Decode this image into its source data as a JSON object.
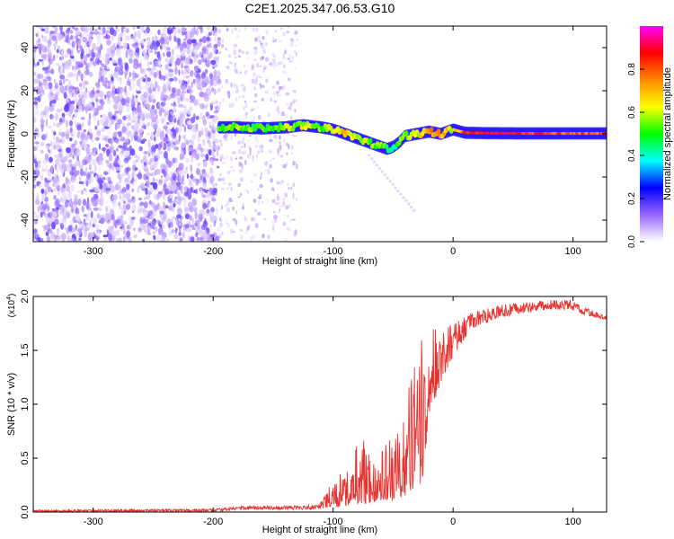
{
  "page": {
    "title": "C2E1.2025.347.06.53.G10"
  },
  "chart_data": [
    {
      "type": "heatmap",
      "title": "C2E1.2025.347.06.53.G10",
      "xlabel": "Height of straight line (km)",
      "ylabel": "Frequency (Hz)",
      "xlim": [
        -350,
        128
      ],
      "ylim": [
        -50,
        50
      ],
      "x_ticks": [
        -300,
        -200,
        -100,
        0,
        100
      ],
      "y_ticks": [
        -40,
        -20,
        0,
        20,
        40
      ],
      "colorbar": {
        "label": "Normalized spectral amplitude",
        "range": [
          0,
          1
        ],
        "ticks": [
          "0.0",
          "0.2",
          "0.4",
          "0.6",
          "0.8"
        ],
        "colors": [
          "#ffffff",
          "#9966ff",
          "#0000ff",
          "#00ffff",
          "#00ff00",
          "#ffff00",
          "#ff8800",
          "#ff0000",
          "#ff00ff"
        ]
      },
      "noise_region_x": [
        -350,
        -195
      ],
      "sparse_region_x": [
        -195,
        -130
      ],
      "signal_track": {
        "x": [
          -195,
          -180,
          -160,
          -140,
          -125,
          -110,
          -100,
          -90,
          -80,
          -70,
          -60,
          -55,
          -50,
          -45,
          -40,
          -30,
          -20,
          -10,
          0,
          10,
          30,
          60,
          90,
          128
        ],
        "frequency": [
          3,
          3,
          2.5,
          3,
          4,
          3,
          2,
          0,
          -2,
          -4,
          -6,
          -7,
          -6,
          -4,
          -1,
          0,
          1,
          0,
          2,
          0.5,
          0.3,
          0.2,
          0.2,
          0.2
        ],
        "amplitude": [
          0.5,
          0.55,
          0.5,
          0.55,
          0.6,
          0.55,
          0.6,
          0.65,
          0.6,
          0.55,
          0.55,
          0.5,
          0.45,
          0.5,
          0.55,
          0.6,
          0.75,
          0.7,
          0.6,
          0.85,
          0.9,
          0.85,
          0.8,
          0.8
        ]
      }
    },
    {
      "type": "line",
      "xlabel": "Height of straight line (km)",
      "ylabel": "SNR (10 * v/v)",
      "multiplier_label": "(x10",
      "multiplier_exponent": "4",
      "multiplier_close": ")",
      "xlim": [
        -350,
        128
      ],
      "ylim": [
        0,
        2
      ],
      "x_ticks": [
        -300,
        -200,
        -100,
        0,
        100
      ],
      "y_ticks": [
        "0.0",
        "0.5",
        "1.0",
        "1.5",
        "2.0"
      ],
      "line_color": "#e8322e",
      "envelope": {
        "x": [
          -350,
          -200,
          -170,
          -130,
          -110,
          -100,
          -90,
          -80,
          -70,
          -60,
          -50,
          -40,
          -35,
          -30,
          -25,
          -20,
          -10,
          0,
          10,
          20,
          40,
          60,
          80,
          100,
          110,
          128
        ],
        "low": [
          0.0,
          0.0,
          0.02,
          0.02,
          0.03,
          0.05,
          0.05,
          0.08,
          0.08,
          0.1,
          0.1,
          0.15,
          0.2,
          0.2,
          0.3,
          0.9,
          1.2,
          1.45,
          1.6,
          1.72,
          1.8,
          1.85,
          1.88,
          1.87,
          1.82,
          1.78
        ],
        "high": [
          0.02,
          0.03,
          0.06,
          0.06,
          0.1,
          0.3,
          0.4,
          0.65,
          0.7,
          0.62,
          0.75,
          0.85,
          1.35,
          1.52,
          1.62,
          1.7,
          1.72,
          1.75,
          1.82,
          1.88,
          1.92,
          1.95,
          1.97,
          1.97,
          1.9,
          1.82
        ]
      }
    }
  ]
}
